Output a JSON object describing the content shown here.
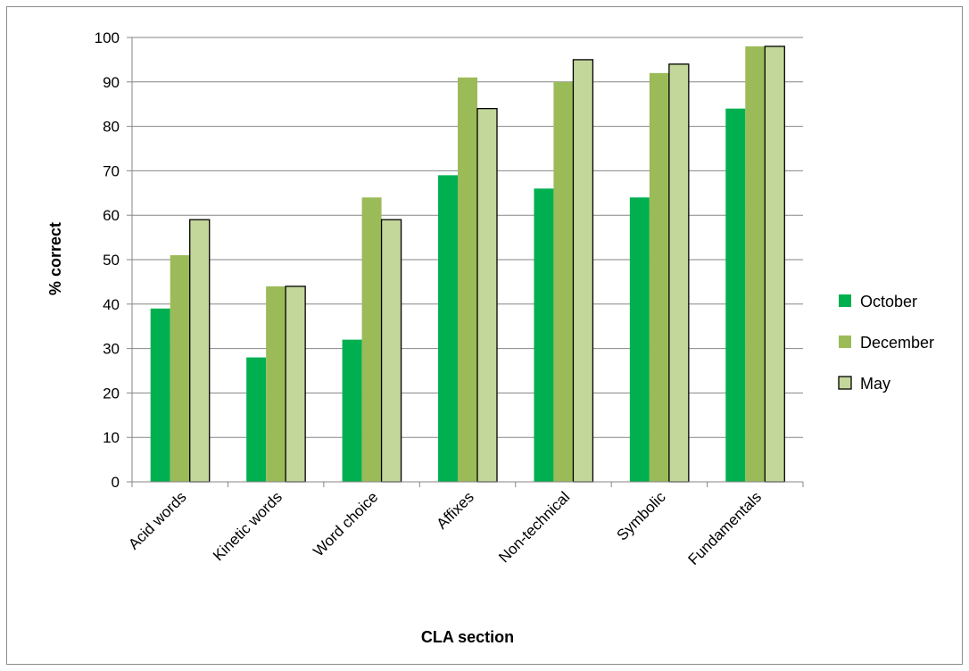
{
  "chart_data": {
    "type": "bar",
    "categories": [
      "Acid words",
      "Kinetic words",
      "Word choice",
      "Affixes",
      "Non-technical",
      "Symbolic",
      "Fundamentals"
    ],
    "series": [
      {
        "name": "October",
        "values": [
          39,
          28,
          32,
          69,
          66,
          64,
          84
        ],
        "color": "#00b050",
        "outline": false
      },
      {
        "name": "December",
        "values": [
          51,
          44,
          64,
          91,
          90,
          92,
          98
        ],
        "color": "#9bbb59",
        "outline": false
      },
      {
        "name": "May",
        "values": [
          59,
          44,
          59,
          84,
          95,
          94,
          98
        ],
        "color": "#c4d79b",
        "outline": true
      }
    ],
    "title": "",
    "xlabel": "CLA section",
    "ylabel": "% correct",
    "ylim": [
      0,
      100
    ],
    "yticks": [
      0,
      10,
      20,
      30,
      40,
      50,
      60,
      70,
      80,
      90,
      100
    ],
    "grid": true,
    "legend_position": "right"
  }
}
